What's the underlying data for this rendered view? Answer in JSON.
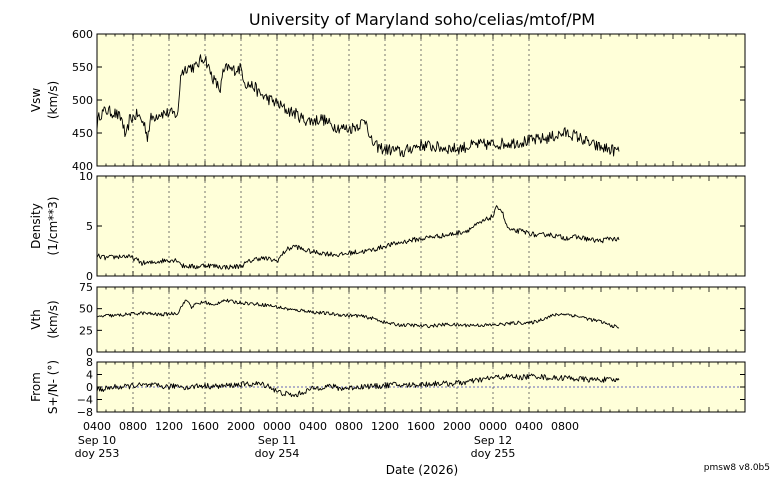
{
  "title": "University of Maryland  soho/celias/mtof/PM",
  "version": "pmsw8 v8.0b5",
  "colors": {
    "panel_bg": "#ffffd9",
    "line": "#000000",
    "grid": "#555555"
  },
  "chart_data": {
    "type": "line",
    "xlabel": "Date (2026)",
    "x_range_hours": [
      4,
      76
    ],
    "x_ticks": [
      {
        "label": "0400",
        "hour": 4,
        "date": "Sep 10",
        "doy": "doy 253"
      },
      {
        "label": "0800",
        "hour": 8
      },
      {
        "label": "1200",
        "hour": 12
      },
      {
        "label": "1600",
        "hour": 16
      },
      {
        "label": "2000",
        "hour": 20
      },
      {
        "label": "0000",
        "hour": 24,
        "date": "Sep 11",
        "doy": "doy 254"
      },
      {
        "label": "0400",
        "hour": 28
      },
      {
        "label": "0800",
        "hour": 32
      },
      {
        "label": "1200",
        "hour": 36
      },
      {
        "label": "1600",
        "hour": 40
      },
      {
        "label": "2000",
        "hour": 44
      },
      {
        "label": "0000",
        "hour": 48,
        "date": "Sep 12",
        "doy": "doy 255"
      },
      {
        "label": "0400",
        "hour": 52
      },
      {
        "label": "0800",
        "hour": 56
      }
    ],
    "panels": [
      {
        "name": "vsw",
        "ylabel": [
          "Vsw",
          "(km/s)"
        ],
        "ylim": [
          400,
          600
        ],
        "yticks": [
          "400",
          "450",
          "500",
          "550",
          "600"
        ],
        "ytick_values": [
          400,
          450,
          500,
          550,
          600
        ],
        "zero_line": false,
        "noise": 9,
        "points": [
          [
            4,
            462
          ],
          [
            4.3,
            478
          ],
          [
            5,
            484
          ],
          [
            6,
            480
          ],
          [
            6.8,
            470
          ],
          [
            7.2,
            440
          ],
          [
            7.6,
            470
          ],
          [
            8.5,
            478
          ],
          [
            9.3,
            462
          ],
          [
            9.6,
            445
          ],
          [
            10,
            472
          ],
          [
            11,
            480
          ],
          [
            12,
            480
          ],
          [
            13,
            478
          ],
          [
            13.3,
            540
          ],
          [
            14,
            550
          ],
          [
            15,
            550
          ],
          [
            15.5,
            560
          ],
          [
            16,
            565
          ],
          [
            16.5,
            545
          ],
          [
            17,
            530
          ],
          [
            17.7,
            515
          ],
          [
            18,
            540
          ],
          [
            18.5,
            550
          ],
          [
            19,
            545
          ],
          [
            20,
            548
          ],
          [
            20.5,
            525
          ],
          [
            21.5,
            520
          ],
          [
            22,
            510
          ],
          [
            23,
            502
          ],
          [
            24,
            495
          ],
          [
            25,
            485
          ],
          [
            26,
            480
          ],
          [
            27,
            470
          ],
          [
            28,
            468
          ],
          [
            29,
            472
          ],
          [
            30,
            462
          ],
          [
            31,
            458
          ],
          [
            32,
            456
          ],
          [
            33,
            462
          ],
          [
            34,
            470
          ],
          [
            34.3,
            440
          ],
          [
            35,
            430
          ],
          [
            36,
            425
          ],
          [
            37,
            424
          ],
          [
            38,
            420
          ],
          [
            39,
            428
          ],
          [
            40,
            432
          ],
          [
            42,
            428
          ],
          [
            44,
            426
          ],
          [
            46,
            432
          ],
          [
            48,
            433
          ],
          [
            50,
            435
          ],
          [
            52,
            438
          ],
          [
            54,
            442
          ],
          [
            56,
            450
          ],
          [
            57,
            447
          ],
          [
            58,
            440
          ],
          [
            59,
            432
          ],
          [
            60,
            428
          ],
          [
            62,
            422
          ]
        ]
      },
      {
        "name": "density",
        "ylabel": [
          "Density",
          "(1/cm**3)"
        ],
        "ylim": [
          0,
          10
        ],
        "yticks": [
          "0",
          "5",
          "10"
        ],
        "ytick_values": [
          0,
          5,
          10
        ],
        "zero_line": false,
        "noise": 0.25,
        "points": [
          [
            4,
            2.0
          ],
          [
            5,
            1.8
          ],
          [
            6,
            1.9
          ],
          [
            7,
            2.0
          ],
          [
            8,
            1.8
          ],
          [
            9,
            1.3
          ],
          [
            10,
            1.3
          ],
          [
            11,
            1.5
          ],
          [
            12,
            1.6
          ],
          [
            13,
            1.6
          ],
          [
            13.5,
            1.0
          ],
          [
            14,
            1.0
          ],
          [
            15,
            0.9
          ],
          [
            16,
            1.1
          ],
          [
            17,
            1.0
          ],
          [
            18,
            0.9
          ],
          [
            19,
            0.9
          ],
          [
            20,
            1.0
          ],
          [
            21,
            1.5
          ],
          [
            22,
            1.8
          ],
          [
            23,
            1.7
          ],
          [
            24,
            1.5
          ],
          [
            25,
            2.6
          ],
          [
            26,
            3.0
          ],
          [
            27,
            2.6
          ],
          [
            28,
            2.4
          ],
          [
            29,
            2.3
          ],
          [
            30,
            2.2
          ],
          [
            31,
            2.1
          ],
          [
            32,
            2.3
          ],
          [
            33,
            2.4
          ],
          [
            34,
            2.5
          ],
          [
            35,
            2.7
          ],
          [
            36,
            3.0
          ],
          [
            37,
            3.2
          ],
          [
            38,
            3.4
          ],
          [
            39,
            3.6
          ],
          [
            40,
            3.7
          ],
          [
            41,
            3.9
          ],
          [
            42,
            4.0
          ],
          [
            43,
            4.1
          ],
          [
            44,
            4.3
          ],
          [
            45,
            4.5
          ],
          [
            46,
            5.0
          ],
          [
            47,
            5.5
          ],
          [
            48,
            6.0
          ],
          [
            48.5,
            7.0
          ],
          [
            49,
            6.5
          ],
          [
            49.5,
            5.0
          ],
          [
            50,
            4.5
          ],
          [
            51,
            4.5
          ],
          [
            52,
            4.3
          ],
          [
            53,
            4.0
          ],
          [
            54,
            4.2
          ],
          [
            55,
            4.0
          ],
          [
            56,
            3.8
          ],
          [
            57,
            3.9
          ],
          [
            58,
            3.8
          ],
          [
            59,
            3.6
          ],
          [
            60,
            3.5
          ],
          [
            61,
            3.8
          ],
          [
            62,
            3.6
          ]
        ]
      },
      {
        "name": "vth",
        "ylabel": [
          "Vth",
          "(km/s)"
        ],
        "ylim": [
          0,
          75
        ],
        "yticks": [
          "0",
          "25",
          "50",
          "75"
        ],
        "ytick_values": [
          0,
          25,
          50,
          75
        ],
        "zero_line": false,
        "noise": 2,
        "points": [
          [
            4,
            40
          ],
          [
            5,
            42
          ],
          [
            6,
            42
          ],
          [
            7,
            43
          ],
          [
            8,
            44
          ],
          [
            9,
            45
          ],
          [
            10,
            44
          ],
          [
            11,
            43
          ],
          [
            12,
            44
          ],
          [
            13,
            45
          ],
          [
            13.5,
            55
          ],
          [
            14,
            60
          ],
          [
            14.5,
            52
          ],
          [
            15,
            55
          ],
          [
            16,
            58
          ],
          [
            17,
            53
          ],
          [
            17.5,
            57
          ],
          [
            18,
            60
          ],
          [
            19,
            58
          ],
          [
            20,
            57
          ],
          [
            21,
            56
          ],
          [
            22,
            55
          ],
          [
            23,
            54
          ],
          [
            24,
            52
          ],
          [
            25,
            50
          ],
          [
            26,
            48
          ],
          [
            27,
            48
          ],
          [
            28,
            46
          ],
          [
            29,
            45
          ],
          [
            30,
            44
          ],
          [
            31,
            43
          ],
          [
            32,
            42
          ],
          [
            33,
            42
          ],
          [
            34,
            40
          ],
          [
            35,
            38
          ],
          [
            36,
            34
          ],
          [
            37,
            32
          ],
          [
            38,
            31
          ],
          [
            39,
            31
          ],
          [
            40,
            30
          ],
          [
            41,
            30
          ],
          [
            42,
            31
          ],
          [
            43,
            32
          ],
          [
            44,
            31
          ],
          [
            45,
            31
          ],
          [
            46,
            31
          ],
          [
            47,
            31
          ],
          [
            48,
            31
          ],
          [
            49,
            32
          ],
          [
            50,
            33
          ],
          [
            51,
            34
          ],
          [
            52,
            33
          ],
          [
            53,
            36
          ],
          [
            54,
            40
          ],
          [
            55,
            43
          ],
          [
            56,
            44
          ],
          [
            57,
            42
          ],
          [
            58,
            40
          ],
          [
            59,
            37
          ],
          [
            60,
            35
          ],
          [
            61,
            31
          ],
          [
            62,
            28
          ]
        ]
      },
      {
        "name": "from",
        "ylabel": [
          "From",
          "S+/N- (°)"
        ],
        "ylim": [
          -8,
          8
        ],
        "yticks": [
          "−8",
          "−4",
          "0",
          "4",
          "8"
        ],
        "ytick_values": [
          -8,
          -4,
          0,
          4,
          8
        ],
        "zero_line": true,
        "noise": 0.9,
        "points": [
          [
            4,
            -1
          ],
          [
            5,
            -0.5
          ],
          [
            6,
            0
          ],
          [
            7,
            0
          ],
          [
            8,
            0.5
          ],
          [
            9,
            0.5
          ],
          [
            10,
            0.5
          ],
          [
            11,
            0.3
          ],
          [
            12,
            0
          ],
          [
            13,
            0.5
          ],
          [
            14,
            -0.2
          ],
          [
            15,
            0.3
          ],
          [
            16,
            0.4
          ],
          [
            17,
            0.2
          ],
          [
            18,
            0.3
          ],
          [
            19,
            0.6
          ],
          [
            20,
            0.8
          ],
          [
            21,
            0.9
          ],
          [
            22,
            1.0
          ],
          [
            23,
            0.5
          ],
          [
            24,
            -1.5
          ],
          [
            25,
            -2.2
          ],
          [
            26,
            -2.8
          ],
          [
            27,
            -1.5
          ],
          [
            28,
            -0.5
          ],
          [
            29,
            0
          ],
          [
            30,
            0.3
          ],
          [
            31,
            -0.5
          ],
          [
            32,
            -0.3
          ],
          [
            33,
            0
          ],
          [
            34,
            0.3
          ],
          [
            35,
            0.2
          ],
          [
            36,
            0.5
          ],
          [
            37,
            0.8
          ],
          [
            38,
            0.5
          ],
          [
            39,
            0.7
          ],
          [
            40,
            0.8
          ],
          [
            41,
            1.0
          ],
          [
            42,
            1.2
          ],
          [
            43,
            1.0
          ],
          [
            44,
            1.3
          ],
          [
            45,
            1.5
          ],
          [
            46,
            2.0
          ],
          [
            47,
            2.5
          ],
          [
            48,
            3.0
          ],
          [
            49,
            3.2
          ],
          [
            50,
            3.4
          ],
          [
            51,
            3.0
          ],
          [
            52,
            3.4
          ],
          [
            53,
            3.5
          ],
          [
            54,
            3.0
          ],
          [
            55,
            2.8
          ],
          [
            56,
            3.0
          ],
          [
            57,
            2.7
          ],
          [
            58,
            2.5
          ],
          [
            59,
            2.3
          ],
          [
            60,
            2.4
          ],
          [
            61,
            2.2
          ],
          [
            62,
            2.2
          ]
        ]
      }
    ]
  }
}
